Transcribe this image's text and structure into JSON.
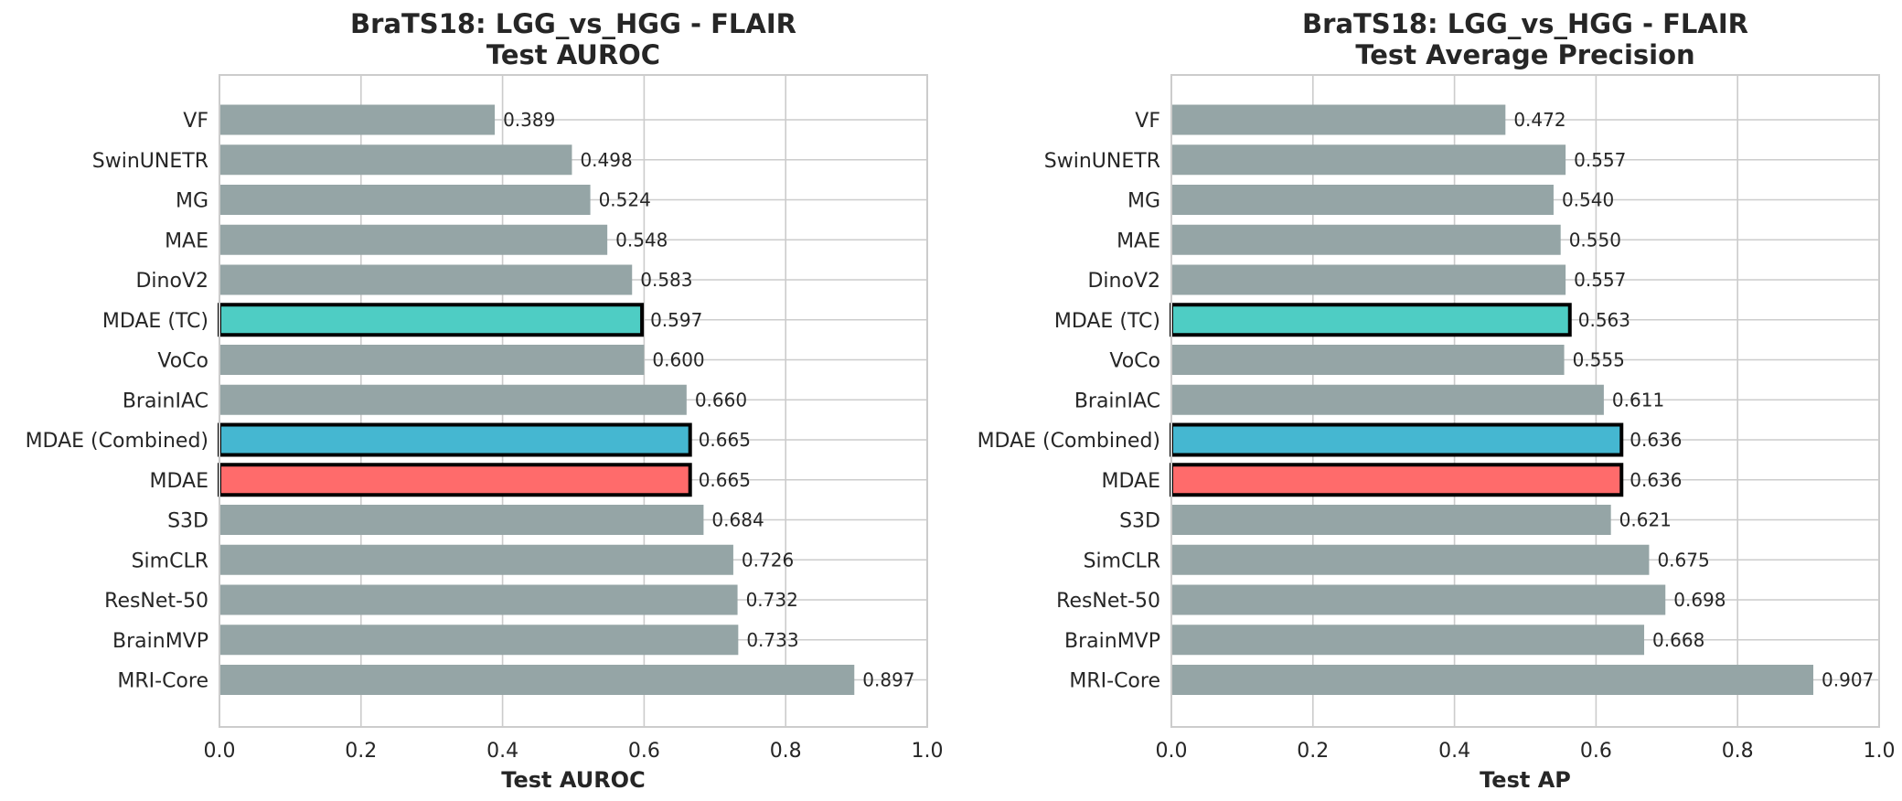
{
  "chart_data": [
    {
      "type": "bar",
      "orientation": "horizontal",
      "title_line1": "BraTS18: LGG_vs_HGG - FLAIR",
      "title_line2": "Test AUROC",
      "xlabel": "Test AUROC",
      "ylabel": "",
      "xlim": [
        0.0,
        1.0
      ],
      "xticks": [
        "0.0",
        "0.2",
        "0.4",
        "0.6",
        "0.8",
        "1.0"
      ],
      "grid": true,
      "categories": [
        "VF",
        "SwinUNETR",
        "MG",
        "MAE",
        "DinoV2",
        "MDAE (TC)",
        "VoCo",
        "BrainIAC",
        "MDAE (Combined)",
        "MDAE",
        "S3D",
        "SimCLR",
        "ResNet-50",
        "BrainMVP",
        "MRI-Core"
      ],
      "values": [
        0.389,
        0.498,
        0.524,
        0.548,
        0.583,
        0.597,
        0.6,
        0.66,
        0.665,
        0.665,
        0.684,
        0.726,
        0.732,
        0.733,
        0.897
      ],
      "value_labels": [
        "0.389",
        "0.498",
        "0.524",
        "0.548",
        "0.583",
        "0.597",
        "0.600",
        "0.660",
        "0.665",
        "0.665",
        "0.684",
        "0.726",
        "0.732",
        "0.733",
        "0.897"
      ]
    },
    {
      "type": "bar",
      "orientation": "horizontal",
      "title_line1": "BraTS18: LGG_vs_HGG - FLAIR",
      "title_line2": "Test Average Precision",
      "xlabel": "Test AP",
      "ylabel": "",
      "xlim": [
        0.0,
        1.0
      ],
      "xticks": [
        "0.0",
        "0.2",
        "0.4",
        "0.6",
        "0.8",
        "1.0"
      ],
      "grid": true,
      "categories": [
        "VF",
        "SwinUNETR",
        "MG",
        "MAE",
        "DinoV2",
        "MDAE (TC)",
        "VoCo",
        "BrainIAC",
        "MDAE (Combined)",
        "MDAE",
        "S3D",
        "SimCLR",
        "ResNet-50",
        "BrainMVP",
        "MRI-Core"
      ],
      "values": [
        0.472,
        0.557,
        0.54,
        0.55,
        0.557,
        0.563,
        0.555,
        0.611,
        0.636,
        0.636,
        0.621,
        0.675,
        0.698,
        0.668,
        0.907
      ],
      "value_labels": [
        "0.472",
        "0.557",
        "0.540",
        "0.550",
        "0.557",
        "0.563",
        "0.555",
        "0.611",
        "0.636",
        "0.636",
        "0.621",
        "0.675",
        "0.698",
        "0.668",
        "0.907"
      ]
    }
  ],
  "colors": {
    "default_bar": "#95a5a6",
    "highlight_outline": "#000000",
    "highlight": {
      "MDAE (TC)": "#4ecdc4",
      "MDAE (Combined)": "#45b7d1",
      "MDAE": "#ff6b6b"
    }
  }
}
